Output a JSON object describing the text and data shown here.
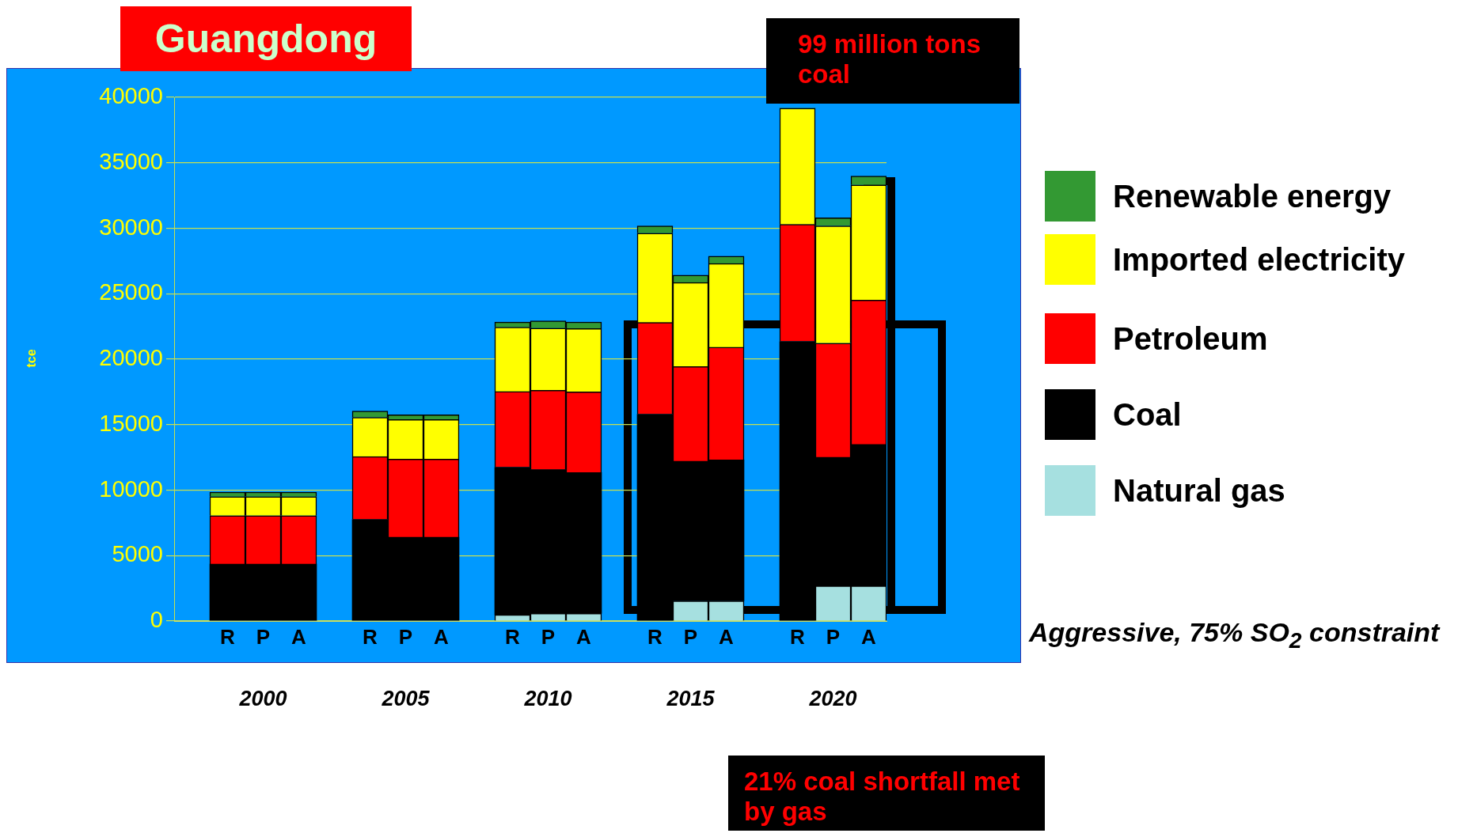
{
  "chart_data": {
    "type": "bar",
    "stacked": true,
    "title": "Guangdong",
    "ylabel": "tce",
    "categories": [
      null,
      "R",
      "P",
      "A",
      null,
      "R",
      "P",
      "A",
      null,
      "R",
      "P",
      "A",
      null,
      "R",
      "P",
      "A",
      null,
      "R",
      "P",
      "A"
    ],
    "series": [
      {
        "name": "Natural gas",
        "color": "#a6e0e0",
        "values": [
          null,
          0,
          0,
          0,
          null,
          0,
          0,
          0,
          null,
          480,
          590,
          590,
          null,
          0,
          1540,
          1540,
          null,
          0,
          2680,
          2680
        ]
      },
      {
        "name": "Coal",
        "color": "#000000",
        "values": [
          null,
          4350,
          4350,
          4350,
          null,
          7760,
          6400,
          6400,
          null,
          11270,
          10970,
          10750,
          null,
          15800,
          10660,
          10770,
          null,
          21360,
          9830,
          10800
        ]
      },
      {
        "name": "Petroleum",
        "color": "#ff0000",
        "values": [
          null,
          3700,
          3700,
          3700,
          null,
          4800,
          5970,
          5970,
          null,
          5780,
          6060,
          6170,
          null,
          7000,
          7230,
          8600,
          null,
          8930,
          8710,
          11030
        ]
      },
      {
        "name": "Imported electricity",
        "color": "#ffff00",
        "values": [
          null,
          1450,
          1450,
          1450,
          null,
          3000,
          3020,
          3020,
          null,
          4910,
          4750,
          4830,
          null,
          6820,
          6420,
          6390,
          null,
          8880,
          8960,
          8800
        ]
      },
      {
        "name": "Renewable energy",
        "color": "#339933",
        "values": [
          null,
          350,
          350,
          350,
          null,
          470,
          360,
          360,
          null,
          390,
          560,
          500,
          null,
          560,
          560,
          560,
          null,
          0,
          620,
          670
        ]
      }
    ],
    "ylim": [
      0,
      40000
    ],
    "yticks": [
      0,
      5000,
      10000,
      15000,
      20000,
      25000,
      30000,
      35000,
      40000
    ],
    "grid": "y",
    "legend": "right",
    "annotations": [
      "2000",
      "2005",
      "2010",
      "2015",
      "2020",
      "Aggressive, 75% SO$_{2}$ constraint",
      "99 million tons coal",
      "21% coal shortfall met by gas"
    ]
  }
}
